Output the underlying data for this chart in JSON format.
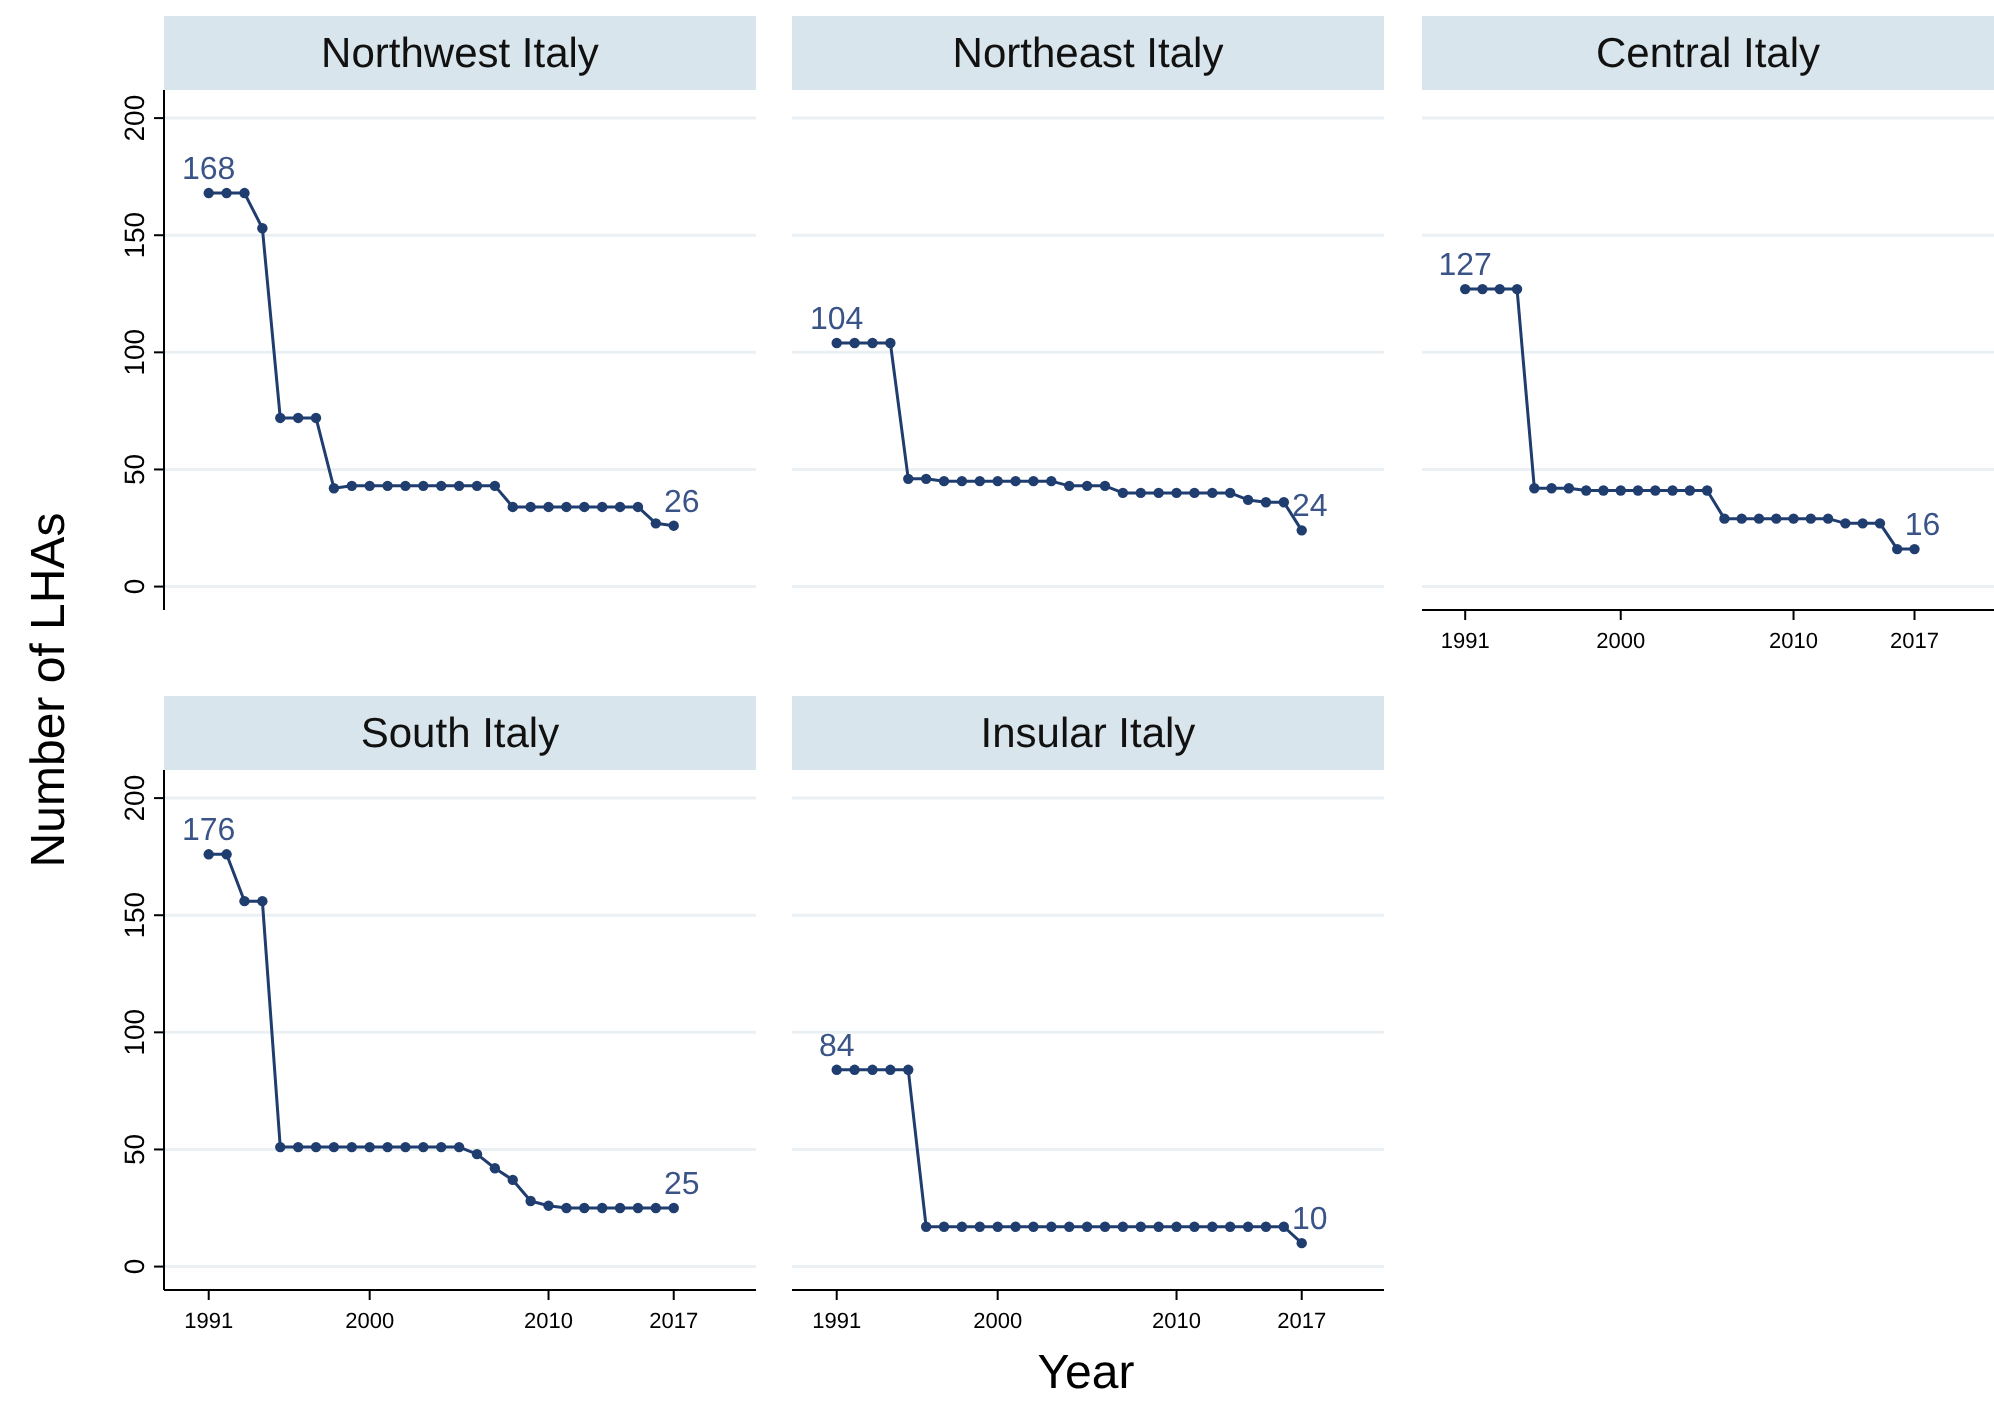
{
  "chart_data": [
    {
      "type": "line",
      "title": "Northwest Italy",
      "xlabel": "Year",
      "ylabel": "Number of LHAs",
      "x": [
        1991,
        1992,
        1993,
        1994,
        1995,
        1996,
        1997,
        1998,
        1999,
        2000,
        2001,
        2002,
        2003,
        2004,
        2005,
        2006,
        2007,
        2008,
        2009,
        2010,
        2011,
        2012,
        2013,
        2014,
        2015,
        2016,
        2017
      ],
      "series": [
        {
          "color": "#1f3d6e",
          "values": [
            168,
            168,
            168,
            153,
            72,
            72,
            72,
            42,
            43,
            43,
            43,
            43,
            43,
            43,
            43,
            43,
            43,
            34,
            34,
            34,
            34,
            34,
            34,
            34,
            34,
            27,
            26
          ],
          "value_labels": [
            "168",
            null,
            null,
            null,
            null,
            null,
            null,
            null,
            null,
            null,
            null,
            null,
            null,
            null,
            null,
            null,
            null,
            null,
            null,
            null,
            null,
            null,
            null,
            null,
            null,
            null,
            "26"
          ]
        }
      ],
      "xlim": [
        1988.5,
        2021.6
      ],
      "xticks": [
        1991,
        2000,
        2010,
        2017
      ],
      "ylim": [
        -10,
        212
      ],
      "yticks": [
        0,
        50,
        100,
        150,
        200
      ],
      "tick_labels": "y",
      "grid": "y",
      "marker": "circle",
      "line_style": "solid"
    },
    {
      "type": "line",
      "title": "Northeast Italy",
      "x": [
        1991,
        1992,
        1993,
        1994,
        1995,
        1996,
        1997,
        1998,
        1999,
        2000,
        2001,
        2002,
        2003,
        2004,
        2005,
        2006,
        2007,
        2008,
        2009,
        2010,
        2011,
        2012,
        2013,
        2014,
        2015,
        2016,
        2017
      ],
      "series": [
        {
          "color": "#1f3d6e",
          "values": [
            104,
            104,
            104,
            104,
            46,
            46,
            45,
            45,
            45,
            45,
            45,
            45,
            45,
            43,
            43,
            43,
            40,
            40,
            40,
            40,
            40,
            40,
            40,
            37,
            36,
            36,
            24
          ],
          "value_labels": [
            "104",
            null,
            null,
            null,
            null,
            null,
            null,
            null,
            null,
            null,
            null,
            null,
            null,
            null,
            null,
            null,
            null,
            null,
            null,
            null,
            null,
            null,
            null,
            null,
            null,
            null,
            "24"
          ]
        }
      ],
      "xlim": [
        1988.5,
        2021.6
      ],
      "xticks": [
        1991,
        2000,
        2010,
        2017
      ],
      "yticks": [
        0,
        50,
        100,
        150,
        200
      ],
      "tick_labels": false,
      "grid": "y",
      "marker": "circle",
      "line_style": "solid"
    },
    {
      "type": "line",
      "title": "Central Italy",
      "x": [
        1991,
        1992,
        1993,
        1994,
        1995,
        1996,
        1997,
        1998,
        1999,
        2000,
        2001,
        2002,
        2003,
        2004,
        2005,
        2006,
        2007,
        2008,
        2009,
        2010,
        2011,
        2012,
        2013,
        2014,
        2015,
        2016,
        2017
      ],
      "series": [
        {
          "color": "#1f3d6e",
          "values": [
            127,
            127,
            127,
            127,
            42,
            42,
            42,
            41,
            41,
            41,
            41,
            41,
            41,
            41,
            41,
            29,
            29,
            29,
            29,
            29,
            29,
            29,
            27,
            27,
            27,
            16,
            16
          ],
          "value_labels": [
            "127",
            null,
            null,
            null,
            null,
            null,
            null,
            null,
            null,
            null,
            null,
            null,
            null,
            null,
            null,
            null,
            null,
            null,
            null,
            null,
            null,
            null,
            null,
            null,
            null,
            null,
            "16"
          ]
        }
      ],
      "xlim": [
        1988.5,
        2021.6
      ],
      "xticks": [
        1991,
        2000,
        2010,
        2017
      ],
      "yticks": [
        0,
        50,
        100,
        150,
        200
      ],
      "tick_labels": "x",
      "grid": "y",
      "marker": "circle",
      "line_style": "solid"
    },
    {
      "type": "line",
      "title": "South Italy",
      "x": [
        1991,
        1992,
        1993,
        1994,
        1995,
        1996,
        1997,
        1998,
        1999,
        2000,
        2001,
        2002,
        2003,
        2004,
        2005,
        2006,
        2007,
        2008,
        2009,
        2010,
        2011,
        2012,
        2013,
        2014,
        2015,
        2016,
        2017
      ],
      "series": [
        {
          "color": "#1f3d6e",
          "values": [
            176,
            176,
            156,
            156,
            51,
            51,
            51,
            51,
            51,
            51,
            51,
            51,
            51,
            51,
            51,
            48,
            42,
            37,
            28,
            26,
            25,
            25,
            25,
            25,
            25,
            25,
            25
          ],
          "value_labels": [
            "176",
            null,
            null,
            null,
            null,
            null,
            null,
            null,
            null,
            null,
            null,
            null,
            null,
            null,
            null,
            null,
            null,
            null,
            null,
            null,
            null,
            null,
            null,
            null,
            null,
            null,
            "25"
          ]
        }
      ],
      "xlim": [
        1988.5,
        2021.6
      ],
      "xticks": [
        1991,
        2000,
        2010,
        2017
      ],
      "ylim": [
        -10,
        212
      ],
      "yticks": [
        0,
        50,
        100,
        150,
        200
      ],
      "grid": "y",
      "marker": "circle",
      "line_style": "solid"
    },
    {
      "type": "line",
      "title": "Insular Italy",
      "x": [
        1991,
        1992,
        1993,
        1994,
        1995,
        1996,
        1997,
        1998,
        1999,
        2000,
        2001,
        2002,
        2003,
        2004,
        2005,
        2006,
        2007,
        2008,
        2009,
        2010,
        2011,
        2012,
        2013,
        2014,
        2015,
        2016,
        2017
      ],
      "series": [
        {
          "color": "#1f3d6e",
          "values": [
            84,
            84,
            84,
            84,
            84,
            17,
            17,
            17,
            17,
            17,
            17,
            17,
            17,
            17,
            17,
            17,
            17,
            17,
            17,
            17,
            17,
            17,
            17,
            17,
            17,
            17,
            10
          ],
          "value_labels": [
            "84",
            null,
            null,
            null,
            null,
            null,
            null,
            null,
            null,
            null,
            null,
            null,
            null,
            null,
            null,
            null,
            null,
            null,
            null,
            null,
            null,
            null,
            null,
            null,
            null,
            null,
            "10"
          ]
        }
      ],
      "xlim": [
        1988.5,
        2021.6
      ],
      "xticks": [
        1991,
        2000,
        2010,
        2017
      ],
      "yticks": [
        0,
        50,
        100,
        150,
        200
      ],
      "tick_labels": "x",
      "grid": "y",
      "marker": "circle",
      "line_style": "solid"
    }
  ]
}
